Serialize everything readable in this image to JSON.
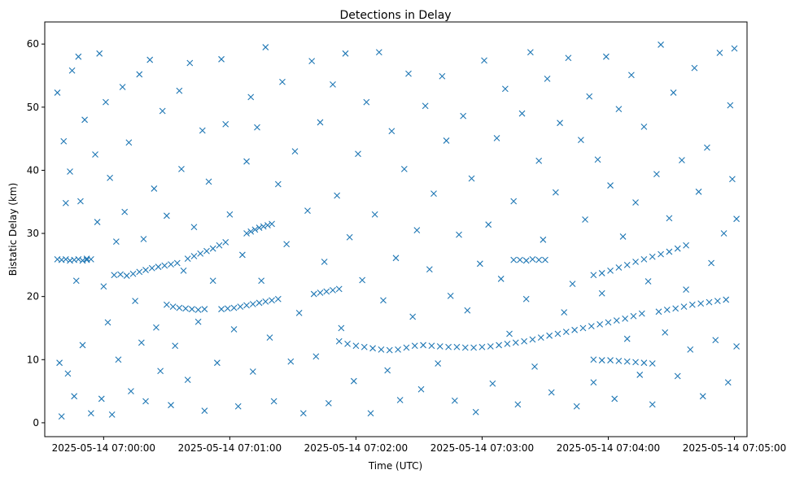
{
  "chart_data": {
    "type": "scatter",
    "title": "Detections in Delay",
    "xlabel": "Time (UTC)",
    "ylabel": "Bistatic Delay (km)",
    "x_units": "seconds since 2025-05-14 07:00:00",
    "xlim": [
      -28,
      306
    ],
    "ylim": [
      -2.2,
      63.5
    ],
    "grid": false,
    "marker": "x",
    "color": "#1f77b4",
    "x_ticks": [
      {
        "value": 0,
        "label": "2025-05-14 07:00:00"
      },
      {
        "value": 60,
        "label": "2025-05-14 07:01:00"
      },
      {
        "value": 120,
        "label": "2025-05-14 07:02:00"
      },
      {
        "value": 180,
        "label": "2025-05-14 07:03:00"
      },
      {
        "value": 240,
        "label": "2025-05-14 07:04:00"
      },
      {
        "value": 300,
        "label": "2025-05-14 07:05:00"
      }
    ],
    "y_ticks": [
      {
        "value": 0,
        "label": "0"
      },
      {
        "value": 10,
        "label": "10"
      },
      {
        "value": 20,
        "label": "20"
      },
      {
        "value": 30,
        "label": "30"
      },
      {
        "value": 40,
        "label": "40"
      },
      {
        "value": 50,
        "label": "50"
      },
      {
        "value": 60,
        "label": "60"
      }
    ],
    "points": [
      [
        -22,
        25.9
      ],
      [
        -20,
        25.8
      ],
      [
        -18,
        25.9
      ],
      [
        -16,
        25.7
      ],
      [
        -14,
        25.8
      ],
      [
        -12,
        25.9
      ],
      [
        -10,
        25.7
      ],
      [
        -8,
        25.8
      ],
      [
        -6,
        25.9
      ],
      [
        5,
        23.4
      ],
      [
        8,
        23.5
      ],
      [
        11,
        23.3
      ],
      [
        14,
        23.6
      ],
      [
        17,
        23.9
      ],
      [
        20,
        24.2
      ],
      [
        23,
        24.5
      ],
      [
        26,
        24.7
      ],
      [
        29,
        24.9
      ],
      [
        32,
        25.1
      ],
      [
        35,
        25.3
      ],
      [
        40,
        26
      ],
      [
        43,
        26.4
      ],
      [
        46,
        26.8
      ],
      [
        49,
        27.2
      ],
      [
        52,
        27.6
      ],
      [
        55,
        28.1
      ],
      [
        58,
        28.6
      ],
      [
        30,
        18.7
      ],
      [
        33,
        18.4
      ],
      [
        36,
        18.2
      ],
      [
        39,
        18.1
      ],
      [
        42,
        18
      ],
      [
        45,
        17.9
      ],
      [
        48,
        18
      ],
      [
        56,
        18
      ],
      [
        59,
        18.1
      ],
      [
        62,
        18.2
      ],
      [
        65,
        18.4
      ],
      [
        68,
        18.6
      ],
      [
        71,
        18.8
      ],
      [
        74,
        19
      ],
      [
        77,
        19.2
      ],
      [
        80,
        19.4
      ],
      [
        83,
        19.6
      ],
      [
        68,
        30
      ],
      [
        70,
        30.3
      ],
      [
        72,
        30.6
      ],
      [
        74,
        30.9
      ],
      [
        76,
        31.1
      ],
      [
        78,
        31.3
      ],
      [
        80,
        31.5
      ],
      [
        100,
        20.4
      ],
      [
        103,
        20.6
      ],
      [
        106,
        20.8
      ],
      [
        109,
        21
      ],
      [
        112,
        21.2
      ],
      [
        112,
        12.9
      ],
      [
        116,
        12.5
      ],
      [
        120,
        12.2
      ],
      [
        124,
        12
      ],
      [
        128,
        11.8
      ],
      [
        132,
        11.6
      ],
      [
        136,
        11.5
      ],
      [
        140,
        11.6
      ],
      [
        144,
        11.9
      ],
      [
        148,
        12.2
      ],
      [
        152,
        12.3
      ],
      [
        156,
        12.2
      ],
      [
        160,
        12.1
      ],
      [
        164,
        12
      ],
      [
        168,
        12
      ],
      [
        172,
        11.9
      ],
      [
        176,
        11.9
      ],
      [
        180,
        12
      ],
      [
        184,
        12.1
      ],
      [
        188,
        12.3
      ],
      [
        192,
        12.5
      ],
      [
        196,
        12.7
      ],
      [
        200,
        12.9
      ],
      [
        204,
        13.2
      ],
      [
        208,
        13.5
      ],
      [
        212,
        13.8
      ],
      [
        216,
        14.1
      ],
      [
        220,
        14.4
      ],
      [
        224,
        14.7
      ],
      [
        228,
        15
      ],
      [
        232,
        15.3
      ],
      [
        236,
        15.6
      ],
      [
        240,
        15.9
      ],
      [
        244,
        16.2
      ],
      [
        248,
        16.5
      ],
      [
        252,
        16.9
      ],
      [
        256,
        17.3
      ],
      [
        264,
        17.6
      ],
      [
        268,
        17.9
      ],
      [
        272,
        18.1
      ],
      [
        276,
        18.4
      ],
      [
        280,
        18.7
      ],
      [
        284,
        18.9
      ],
      [
        288,
        19.1
      ],
      [
        292,
        19.3
      ],
      [
        296,
        19.5
      ],
      [
        233,
        23.4
      ],
      [
        237,
        23.7
      ],
      [
        241,
        24.1
      ],
      [
        245,
        24.6
      ],
      [
        249,
        25
      ],
      [
        253,
        25.5
      ],
      [
        257,
        25.9
      ],
      [
        261,
        26.3
      ],
      [
        265,
        26.7
      ],
      [
        269,
        27.1
      ],
      [
        273,
        27.6
      ],
      [
        277,
        28.1
      ],
      [
        195,
        25.8
      ],
      [
        198,
        25.8
      ],
      [
        201,
        25.7
      ],
      [
        204,
        25.9
      ],
      [
        207,
        25.8
      ],
      [
        210,
        25.8
      ],
      [
        233,
        10
      ],
      [
        237,
        9.9
      ],
      [
        241,
        9.9
      ],
      [
        245,
        9.8
      ],
      [
        249,
        9.7
      ],
      [
        253,
        9.6
      ],
      [
        257,
        9.5
      ],
      [
        261,
        9.4
      ],
      [
        -22,
        52.3
      ],
      [
        -21,
        9.5
      ],
      [
        -20,
        1
      ],
      [
        -19,
        44.6
      ],
      [
        -18,
        34.8
      ],
      [
        -17,
        7.8
      ],
      [
        -16,
        39.8
      ],
      [
        -15,
        55.8
      ],
      [
        -14,
        4.2
      ],
      [
        -13,
        22.5
      ],
      [
        -12,
        58
      ],
      [
        -11,
        35.1
      ],
      [
        -10,
        12.3
      ],
      [
        -9,
        48
      ],
      [
        -8,
        26
      ],
      [
        -6,
        1.5
      ],
      [
        -4,
        42.5
      ],
      [
        -3,
        31.8
      ],
      [
        -2,
        58.5
      ],
      [
        -1,
        3.8
      ],
      [
        0,
        21.6
      ],
      [
        1,
        50.8
      ],
      [
        2,
        15.9
      ],
      [
        3,
        38.8
      ],
      [
        4,
        1.3
      ],
      [
        6,
        28.7
      ],
      [
        7,
        10
      ],
      [
        9,
        53.2
      ],
      [
        10,
        33.4
      ],
      [
        12,
        44.4
      ],
      [
        13,
        5
      ],
      [
        15,
        19.3
      ],
      [
        17,
        55.2
      ],
      [
        18,
        12.7
      ],
      [
        19,
        29.1
      ],
      [
        20,
        3.4
      ],
      [
        22,
        57.5
      ],
      [
        24,
        37.1
      ],
      [
        25,
        15.1
      ],
      [
        27,
        8.2
      ],
      [
        28,
        49.4
      ],
      [
        30,
        32.8
      ],
      [
        32,
        2.8
      ],
      [
        34,
        12.2
      ],
      [
        36,
        52.6
      ],
      [
        37,
        40.2
      ],
      [
        38,
        24.1
      ],
      [
        40,
        6.8
      ],
      [
        41,
        57
      ],
      [
        43,
        31
      ],
      [
        45,
        16
      ],
      [
        47,
        46.3
      ],
      [
        48,
        1.9
      ],
      [
        50,
        38.2
      ],
      [
        52,
        22.5
      ],
      [
        54,
        9.5
      ],
      [
        56,
        57.6
      ],
      [
        58,
        47.3
      ],
      [
        60,
        33
      ],
      [
        62,
        14.8
      ],
      [
        64,
        2.6
      ],
      [
        66,
        26.6
      ],
      [
        68,
        41.4
      ],
      [
        70,
        51.6
      ],
      [
        71,
        8.1
      ],
      [
        73,
        46.8
      ],
      [
        75,
        22.5
      ],
      [
        77,
        59.5
      ],
      [
        79,
        13.5
      ],
      [
        81,
        3.4
      ],
      [
        83,
        37.8
      ],
      [
        85,
        54
      ],
      [
        87,
        28.3
      ],
      [
        89,
        9.7
      ],
      [
        91,
        43
      ],
      [
        93,
        17.4
      ],
      [
        95,
        1.5
      ],
      [
        97,
        33.6
      ],
      [
        99,
        57.3
      ],
      [
        101,
        10.5
      ],
      [
        103,
        47.6
      ],
      [
        105,
        25.5
      ],
      [
        107,
        3.1
      ],
      [
        109,
        53.6
      ],
      [
        111,
        36
      ],
      [
        113,
        15
      ],
      [
        115,
        58.5
      ],
      [
        117,
        29.4
      ],
      [
        119,
        6.6
      ],
      [
        121,
        42.6
      ],
      [
        123,
        22.6
      ],
      [
        125,
        50.8
      ],
      [
        127,
        1.5
      ],
      [
        129,
        33
      ],
      [
        131,
        58.7
      ],
      [
        133,
        19.4
      ],
      [
        135,
        8.3
      ],
      [
        137,
        46.2
      ],
      [
        139,
        26.1
      ],
      [
        141,
        3.6
      ],
      [
        143,
        40.2
      ],
      [
        145,
        55.3
      ],
      [
        147,
        16.8
      ],
      [
        149,
        30.5
      ],
      [
        151,
        5.3
      ],
      [
        153,
        50.2
      ],
      [
        155,
        24.3
      ],
      [
        157,
        36.3
      ],
      [
        159,
        9.4
      ],
      [
        161,
        54.9
      ],
      [
        163,
        44.7
      ],
      [
        165,
        20.1
      ],
      [
        167,
        3.5
      ],
      [
        169,
        29.8
      ],
      [
        171,
        48.6
      ],
      [
        173,
        17.8
      ],
      [
        175,
        38.7
      ],
      [
        177,
        1.7
      ],
      [
        179,
        25.2
      ],
      [
        181,
        57.4
      ],
      [
        183,
        31.4
      ],
      [
        185,
        6.2
      ],
      [
        187,
        45.1
      ],
      [
        189,
        22.8
      ],
      [
        191,
        52.9
      ],
      [
        193,
        14.1
      ],
      [
        195,
        35.1
      ],
      [
        197,
        2.9
      ],
      [
        199,
        49
      ],
      [
        201,
        19.6
      ],
      [
        203,
        58.7
      ],
      [
        205,
        8.9
      ],
      [
        207,
        41.5
      ],
      [
        209,
        29
      ],
      [
        211,
        54.5
      ],
      [
        213,
        4.8
      ],
      [
        215,
        36.5
      ],
      [
        217,
        47.5
      ],
      [
        219,
        17.5
      ],
      [
        221,
        57.8
      ],
      [
        223,
        22
      ],
      [
        225,
        2.6
      ],
      [
        227,
        44.8
      ],
      [
        229,
        32.2
      ],
      [
        231,
        51.7
      ],
      [
        233,
        6.4
      ],
      [
        235,
        41.7
      ],
      [
        237,
        20.5
      ],
      [
        239,
        58
      ],
      [
        241,
        37.6
      ],
      [
        243,
        3.8
      ],
      [
        245,
        49.7
      ],
      [
        247,
        29.5
      ],
      [
        249,
        13.3
      ],
      [
        251,
        55.1
      ],
      [
        253,
        34.9
      ],
      [
        255,
        7.6
      ],
      [
        257,
        46.9
      ],
      [
        259,
        22.4
      ],
      [
        261,
        2.9
      ],
      [
        263,
        39.4
      ],
      [
        265,
        59.9
      ],
      [
        267,
        14.3
      ],
      [
        269,
        32.4
      ],
      [
        271,
        52.3
      ],
      [
        273,
        7.4
      ],
      [
        275,
        41.6
      ],
      [
        277,
        21.1
      ],
      [
        279,
        11.6
      ],
      [
        281,
        56.2
      ],
      [
        283,
        36.6
      ],
      [
        285,
        4.2
      ],
      [
        287,
        43.6
      ],
      [
        289,
        25.3
      ],
      [
        291,
        13.1
      ],
      [
        293,
        58.6
      ],
      [
        295,
        30
      ],
      [
        297,
        6.4
      ],
      [
        298,
        50.3
      ],
      [
        299,
        38.6
      ],
      [
        300,
        59.3
      ],
      [
        301,
        32.3
      ],
      [
        301,
        12.1
      ]
    ]
  }
}
